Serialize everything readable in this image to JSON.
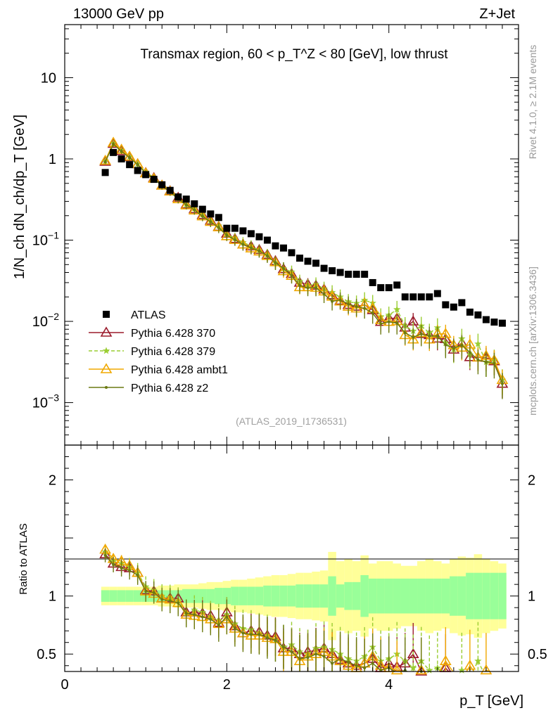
{
  "header": {
    "energy": "13000 GeV pp",
    "process": "Z+Jet",
    "title": "Transmax region, 60 < p_T^Z < 80 [GeV], low thrust",
    "rivet_label": "Rivet 4.1.0, ≥ 2.1M events",
    "mcplots_label": "mcplots.cern.ch [arXiv:1306.3436]",
    "analysis_id": "(ATLAS_2019_I1736531)"
  },
  "axes": {
    "main_ylabel": "1/N_ch dN_ch/dp_T [GeV]",
    "ratio_ylabel": "Ratio to ATLAS",
    "xlabel": "p_T [GeV]",
    "x_ticks": [
      "0",
      "2",
      "4"
    ],
    "main_y_ticks": [
      "10",
      "1",
      "10^-1",
      "10^-2",
      "10^-3"
    ],
    "ratio_y_ticks": [
      "2",
      "1",
      "0.5"
    ]
  },
  "legend": [
    {
      "label": "ATLAS",
      "color": "#000000",
      "marker": "square"
    },
    {
      "label": "Pythia 6.428 370",
      "color": "#9b1b2c",
      "marker": "triangle-open"
    },
    {
      "label": "Pythia 6.428 379",
      "color": "#9acd32",
      "marker": "star",
      "dashed": true
    },
    {
      "label": "Pythia 6.428 ambt1",
      "color": "#f0a800",
      "marker": "triangle-open"
    },
    {
      "label": "Pythia 6.428 z2",
      "color": "#6b7a12",
      "marker": "dot"
    }
  ],
  "chart_data": {
    "type": "scatter",
    "title": "Transmax region, 60 < p_T^Z < 80 [GeV], low thrust",
    "xlabel": "p_T [GeV]",
    "ylabel": "1/N_ch dN_ch/dp_T [GeV]",
    "xlim": [
      0,
      5.6
    ],
    "ylim": [
      0.0003,
      45
    ],
    "yscale": "log",
    "ratio_ylim": [
      0.35,
      2.3
    ],
    "x": [
      0.5,
      0.6,
      0.7,
      0.8,
      0.9,
      1.0,
      1.1,
      1.2,
      1.3,
      1.4,
      1.5,
      1.6,
      1.7,
      1.8,
      1.9,
      2.0,
      2.1,
      2.2,
      2.3,
      2.4,
      2.5,
      2.6,
      2.7,
      2.8,
      2.9,
      3.0,
      3.1,
      3.2,
      3.3,
      3.4,
      3.5,
      3.6,
      3.7,
      3.8,
      3.9,
      4.0,
      4.1,
      4.2,
      4.3,
      4.4,
      4.5,
      4.6,
      4.7,
      4.8,
      4.9,
      5.0,
      5.1,
      5.2,
      5.3,
      5.4
    ],
    "series": [
      {
        "name": "ATLAS",
        "values": [
          0.68,
          1.2,
          1.0,
          0.85,
          0.72,
          0.64,
          0.56,
          0.48,
          0.41,
          0.34,
          0.32,
          0.28,
          0.24,
          0.21,
          0.19,
          0.14,
          0.14,
          0.13,
          0.12,
          0.11,
          0.1,
          0.085,
          0.08,
          0.07,
          0.06,
          0.055,
          0.052,
          0.045,
          0.042,
          0.04,
          0.038,
          0.038,
          0.038,
          0.03,
          0.026,
          0.026,
          0.028,
          0.02,
          0.02,
          0.02,
          0.02,
          0.022,
          0.016,
          0.015,
          0.017,
          0.013,
          0.012,
          0.0105,
          0.0098,
          0.0095
        ],
        "band_inner": [
          0.05,
          0.05,
          0.05,
          0.05,
          0.05,
          0.05,
          0.05,
          0.05,
          0.05,
          0.05,
          0.06,
          0.06,
          0.06,
          0.06,
          0.07,
          0.07,
          0.08,
          0.08,
          0.08,
          0.08,
          0.09,
          0.09,
          0.09,
          0.09,
          0.1,
          0.1,
          0.1,
          0.1,
          0.17,
          0.1,
          0.12,
          0.12,
          0.18,
          0.15,
          0.15,
          0.15,
          0.15,
          0.15,
          0.15,
          0.15,
          0.15,
          0.15,
          0.15,
          0.17,
          0.17,
          0.2,
          0.2,
          0.2,
          0.2,
          0.2
        ],
        "band_outer": [
          0.08,
          0.08,
          0.08,
          0.08,
          0.08,
          0.08,
          0.08,
          0.09,
          0.09,
          0.1,
          0.1,
          0.1,
          0.11,
          0.12,
          0.12,
          0.13,
          0.14,
          0.14,
          0.15,
          0.16,
          0.17,
          0.18,
          0.18,
          0.19,
          0.2,
          0.2,
          0.21,
          0.22,
          0.38,
          0.3,
          0.32,
          0.3,
          0.35,
          0.28,
          0.3,
          0.3,
          0.28,
          0.26,
          0.26,
          0.3,
          0.32,
          0.3,
          0.28,
          0.32,
          0.34,
          0.33,
          0.36,
          0.32,
          0.3,
          0.28
        ]
      },
      {
        "name": "Pythia 6.428 370",
        "ratio": [
          1.36,
          1.28,
          1.25,
          1.24,
          1.2,
          1.05,
          1.04,
          0.98,
          0.98,
          0.98,
          0.86,
          0.86,
          0.85,
          0.83,
          0.77,
          0.86,
          0.74,
          0.68,
          0.7,
          0.69,
          0.66,
          0.65,
          0.55,
          0.55,
          0.5,
          0.52,
          0.53,
          0.55,
          0.5,
          0.45,
          0.42,
          0.4,
          0.42,
          0.46,
          0.38,
          0.42,
          0.39,
          0.42,
          0.5,
          0.35,
          0.34,
          0.28,
          0.38,
          0.3,
          0.32,
          0.28,
          0.3,
          0.34,
          0.33,
          0.18
        ]
      },
      {
        "name": "Pythia 6.428 379",
        "ratio": [
          1.38,
          1.3,
          1.28,
          1.25,
          1.2,
          1.08,
          1.05,
          1.0,
          0.99,
          0.96,
          0.85,
          0.88,
          0.86,
          0.82,
          0.79,
          0.84,
          0.76,
          0.72,
          0.71,
          0.68,
          0.66,
          0.62,
          0.56,
          0.58,
          0.52,
          0.5,
          0.55,
          0.56,
          0.54,
          0.5,
          0.46,
          0.44,
          0.48,
          0.56,
          0.44,
          0.46,
          0.5,
          0.44,
          0.38,
          0.44,
          0.36,
          0.38,
          0.34,
          0.3,
          0.36,
          0.3,
          0.44,
          0.3,
          0.34,
          0.2
        ]
      },
      {
        "name": "Pythia 6.428 ambt1",
        "ratio": [
          1.4,
          1.32,
          1.3,
          1.26,
          1.2,
          1.04,
          1.02,
          0.98,
          0.97,
          0.94,
          0.84,
          0.83,
          0.82,
          0.8,
          0.76,
          0.8,
          0.72,
          0.68,
          0.66,
          0.66,
          0.64,
          0.63,
          0.52,
          0.52,
          0.44,
          0.48,
          0.5,
          0.52,
          0.48,
          0.44,
          0.4,
          0.38,
          0.42,
          0.48,
          0.4,
          0.38,
          0.36,
          0.34,
          0.3,
          0.36,
          0.3,
          0.32,
          0.44,
          0.34,
          0.28,
          0.4,
          0.3,
          0.36,
          0.34,
          0.2
        ]
      },
      {
        "name": "Pythia 6.428 z2",
        "ratio": [
          1.35,
          1.27,
          1.24,
          1.22,
          1.18,
          1.04,
          1.03,
          0.97,
          0.96,
          0.94,
          0.85,
          0.84,
          0.82,
          0.8,
          0.75,
          0.82,
          0.72,
          0.68,
          0.67,
          0.67,
          0.64,
          0.62,
          0.56,
          0.52,
          0.46,
          0.47,
          0.5,
          0.48,
          0.42,
          0.46,
          0.43,
          0.4,
          0.38,
          0.42,
          0.36,
          0.38,
          0.34,
          0.36,
          0.32,
          0.35,
          0.33,
          0.3,
          0.32,
          0.31,
          0.3,
          0.32,
          0.28,
          0.3,
          0.31,
          0.18
        ]
      }
    ]
  }
}
